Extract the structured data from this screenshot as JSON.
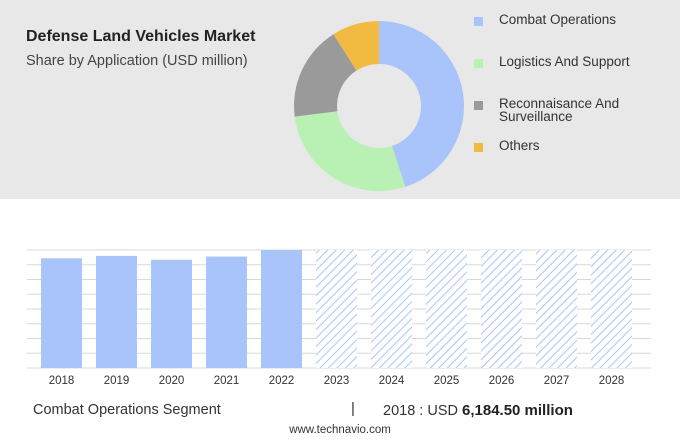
{
  "header": {
    "title": "Defense Land Vehicles Market",
    "subtitle": "Share by Application (USD million)"
  },
  "colors": {
    "panel_bg": "#e8e8e8",
    "forecast_hatch": "#a9c4fb"
  },
  "chart_data": [
    {
      "type": "pie",
      "variant": "donut",
      "legend_position": "right",
      "categories": [
        "Combat Operations",
        "Logistics And Support",
        "Reconnaisance And Surveillance",
        "Others"
      ],
      "values": [
        45,
        28,
        18,
        9
      ],
      "colors": [
        "#a9c4fb",
        "#b9f0b4",
        "#9a9a9a",
        "#f0bb40"
      ]
    },
    {
      "type": "bar",
      "categories": [
        "2018",
        "2019",
        "2020",
        "2021",
        "2022",
        "2023",
        "2024",
        "2025",
        "2026",
        "2027",
        "2028"
      ],
      "values": [
        6184.5,
        6320,
        6100,
        6280,
        6650,
        6650,
        6650,
        6650,
        6650,
        6650,
        6650
      ],
      "forecast_from": "2023",
      "bar_color": "#a9c4fb",
      "ylim": [
        0,
        6650
      ],
      "grid": true
    }
  ],
  "footer": {
    "segment_label": "Combat Operations Segment",
    "separator": "|",
    "year_text": "2018 : USD",
    "amount_text": "6,184.50 million"
  },
  "source": "www.technavio.com"
}
